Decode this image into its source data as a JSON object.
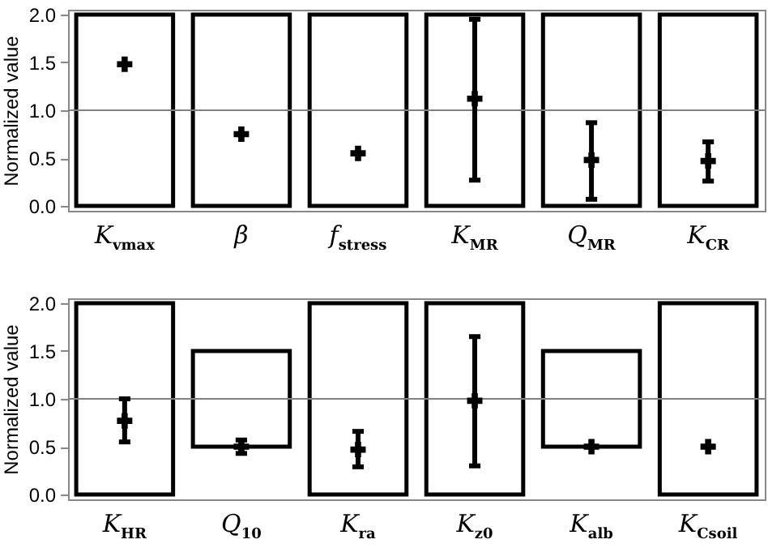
{
  "chart_data": [
    {
      "type": "bar",
      "categories": [
        "K$_{vmax}$",
        "β",
        "f$_{stress}$",
        "K$_{MR}$",
        "Q$_{MR}$",
        "K$_{CR}$"
      ],
      "ylabel": "Normalized value",
      "ylim": [
        -0.05,
        2.05
      ],
      "yticks": [
        {
          "value": 0,
          "label": "0.0"
        },
        {
          "value": 0.5,
          "label": "0.5"
        },
        {
          "value": 1,
          "label": "1.0"
        },
        {
          "value": 1.5,
          "label": "1.5"
        },
        {
          "value": 2,
          "label": "2.0"
        }
      ],
      "grid": false,
      "ref_lines": [
        {
          "axis": "y",
          "value": 1,
          "color": "#808080"
        }
      ],
      "series": [
        {
          "type": "bar",
          "color": "#000000",
          "base": [
            0,
            0,
            0,
            0,
            0,
            0
          ],
          "values": [
            2,
            2,
            2,
            2,
            2,
            2
          ]
        },
        {
          "type": "scatter",
          "color": "#000000",
          "marker": "cross",
          "values": [
            1.48,
            0.75,
            0.55,
            1.12,
            0.48,
            0.47
          ],
          "errors": [
            null,
            null,
            null,
            [
              0.27,
              1.95
            ],
            [
              0.07,
              0.87
            ],
            [
              0.26,
              0.67
            ]
          ]
        }
      ]
    },
    {
      "type": "bar",
      "categories": [
        "K$_{HR}$",
        "Q$_{10}$",
        "K$_{ra}$",
        "K$_{z0}$",
        "K$_{alb}$",
        "K$_{Csoil}$"
      ],
      "ylabel": "Normalized value",
      "ylim": [
        -0.05,
        2.05
      ],
      "yticks": [
        {
          "value": 0,
          "label": "0.0"
        },
        {
          "value": 0.5,
          "label": "0.5"
        },
        {
          "value": 1,
          "label": "1.0"
        },
        {
          "value": 1.5,
          "label": "1.5"
        },
        {
          "value": 2,
          "label": "2.0"
        }
      ],
      "grid": false,
      "ref_lines": [
        {
          "axis": "y",
          "value": 1,
          "color": "#808080"
        }
      ],
      "series": [
        {
          "type": "bar",
          "color": "#000000",
          "base": [
            0,
            0.5,
            0,
            0,
            0.5,
            0
          ],
          "values": [
            2,
            1,
            2,
            2,
            1,
            2
          ]
        },
        {
          "type": "scatter",
          "color": "#000000",
          "marker": "cross",
          "values": [
            0.77,
            0.5,
            0.47,
            0.98,
            0.5,
            0.5
          ],
          "errors": [
            [
              0.55,
              1.0
            ],
            [
              0.43,
              0.57
            ],
            [
              0.29,
              0.66
            ],
            [
              0.3,
              1.65
            ],
            null,
            null
          ]
        }
      ]
    }
  ]
}
